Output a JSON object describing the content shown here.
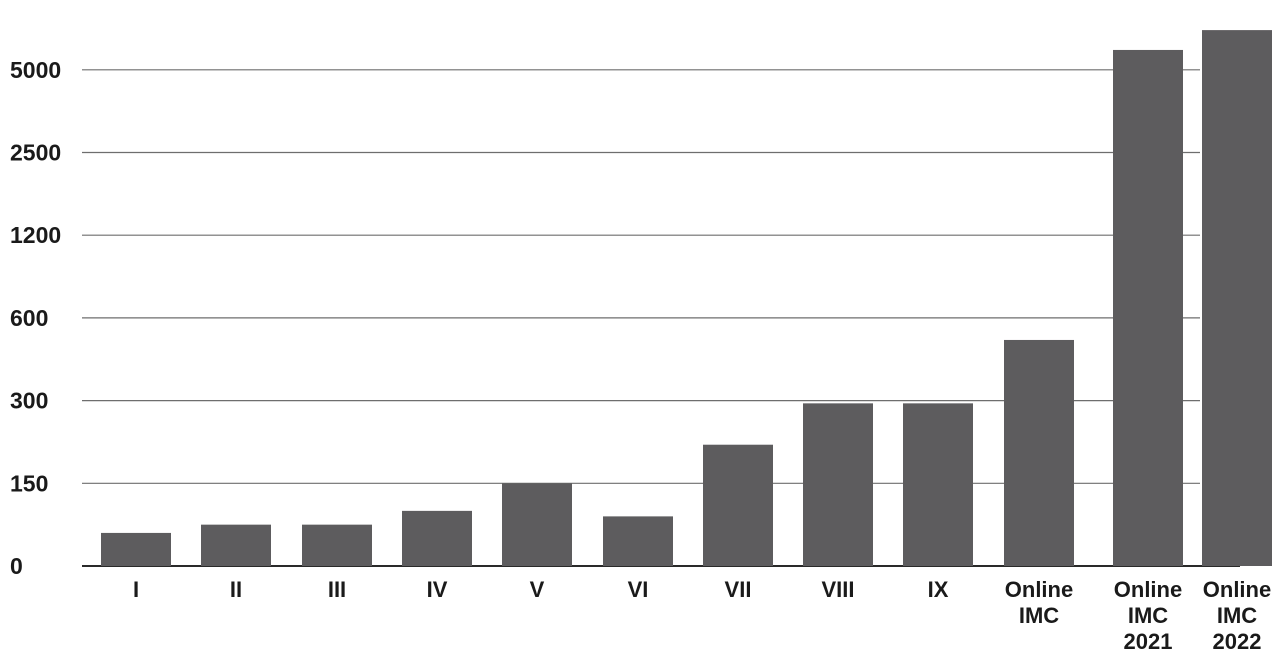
{
  "chart_data": {
    "type": "bar",
    "title": "",
    "xlabel": "",
    "ylabel": "",
    "y_tick_labels": [
      "0",
      "150",
      "300",
      "600",
      "1200",
      "2500",
      "5000"
    ],
    "categories": [
      [
        "I"
      ],
      [
        "II"
      ],
      [
        "III"
      ],
      [
        "IV"
      ],
      [
        "V"
      ],
      [
        "VI"
      ],
      [
        "VII"
      ],
      [
        "VIII"
      ],
      [
        "IX"
      ],
      [
        "Online",
        "IMC"
      ],
      [
        "Online",
        "IMC",
        "2021"
      ],
      [
        "Online",
        "IMC",
        "2022"
      ]
    ],
    "values": [
      60,
      75,
      75,
      100,
      150,
      90,
      220,
      295,
      295,
      520,
      5600,
      6200
    ],
    "grid": true,
    "legend": "none",
    "bar_color": "#5d5c5e",
    "grid_color": "#6e6e6e"
  }
}
